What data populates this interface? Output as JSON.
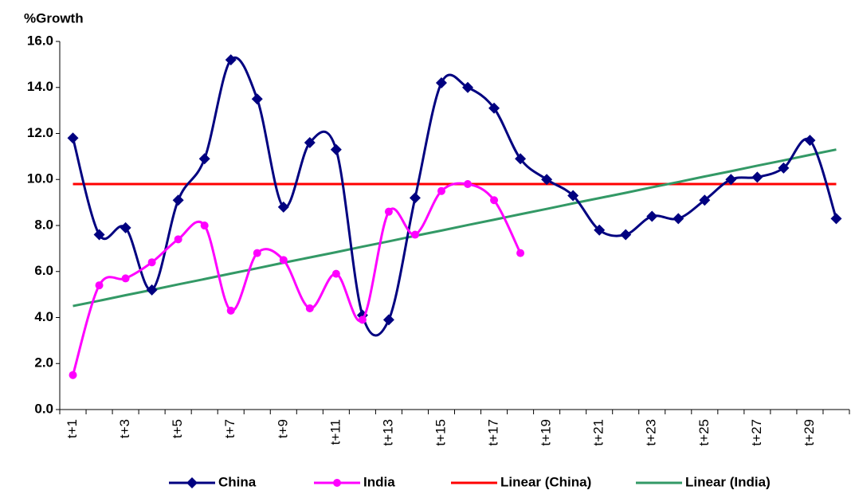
{
  "chart_data": {
    "type": "line",
    "y_label": "%Growth",
    "categories": [
      "t+1",
      null,
      "t+3",
      null,
      "t+5",
      null,
      "t+7",
      null,
      "t+9",
      null,
      "t+11",
      null,
      "t+13",
      null,
      "t+15",
      null,
      "t+17",
      null,
      "t+19",
      null,
      "t+21",
      null,
      "t+23",
      null,
      "t+25",
      null,
      "t+27",
      null,
      "t+29",
      null
    ],
    "series": [
      {
        "name": "China",
        "color": "#000080",
        "marker": "diamond",
        "smooth": true,
        "values": [
          11.8,
          7.6,
          7.9,
          5.2,
          9.1,
          10.9,
          15.2,
          13.5,
          8.8,
          11.6,
          11.3,
          4.1,
          3.9,
          9.2,
          14.2,
          14.0,
          13.1,
          10.9,
          10.0,
          9.3,
          7.8,
          7.6,
          8.4,
          8.3,
          9.1,
          10.0,
          10.1,
          10.5,
          11.7,
          8.3
        ]
      },
      {
        "name": "India",
        "color": "#ff00ff",
        "marker": "circle",
        "smooth": true,
        "values": [
          1.5,
          5.4,
          5.7,
          6.4,
          7.4,
          8.0,
          4.3,
          6.8,
          6.5,
          4.4,
          5.9,
          3.9,
          8.6,
          7.6,
          9.5,
          9.8,
          9.1,
          6.8,
          null,
          null,
          null,
          null,
          null,
          null,
          null,
          null,
          null,
          null,
          null,
          null
        ]
      },
      {
        "name": "Linear (China)",
        "color": "#ff0000",
        "marker": "none",
        "smooth": false,
        "values": [
          9.8,
          9.8,
          9.8,
          9.8,
          9.8,
          9.8,
          9.8,
          9.8,
          9.8,
          9.8,
          9.8,
          9.8,
          9.8,
          9.8,
          9.8,
          9.8,
          9.8,
          9.8,
          9.8,
          9.8,
          9.8,
          9.8,
          9.8,
          9.8,
          9.8,
          9.8,
          9.8,
          9.8,
          9.8,
          9.8
        ]
      },
      {
        "name": "Linear (India)",
        "color": "#339966",
        "marker": "none",
        "smooth": false,
        "values": [
          4.5,
          4.73,
          4.97,
          5.2,
          5.44,
          5.67,
          5.91,
          6.14,
          6.38,
          6.61,
          6.84,
          7.08,
          7.31,
          7.55,
          7.78,
          8.02,
          8.25,
          8.49,
          8.72,
          8.96,
          9.19,
          9.42,
          9.66,
          9.89,
          10.13,
          10.36,
          10.6,
          10.83,
          11.07,
          11.3
        ]
      }
    ],
    "ylim": [
      0,
      16
    ],
    "yticks": [
      {
        "value": 0,
        "label": "0.0"
      },
      {
        "value": 2,
        "label": "2.0"
      },
      {
        "value": 4,
        "label": "4.0"
      },
      {
        "value": 6,
        "label": "6.0"
      },
      {
        "value": 8,
        "label": "8.0"
      },
      {
        "value": 10,
        "label": "10.0"
      },
      {
        "value": 12,
        "label": "12.0"
      },
      {
        "value": 14,
        "label": "14.0"
      },
      {
        "value": 16,
        "label": "16.0"
      }
    ],
    "legend": "bottom"
  }
}
